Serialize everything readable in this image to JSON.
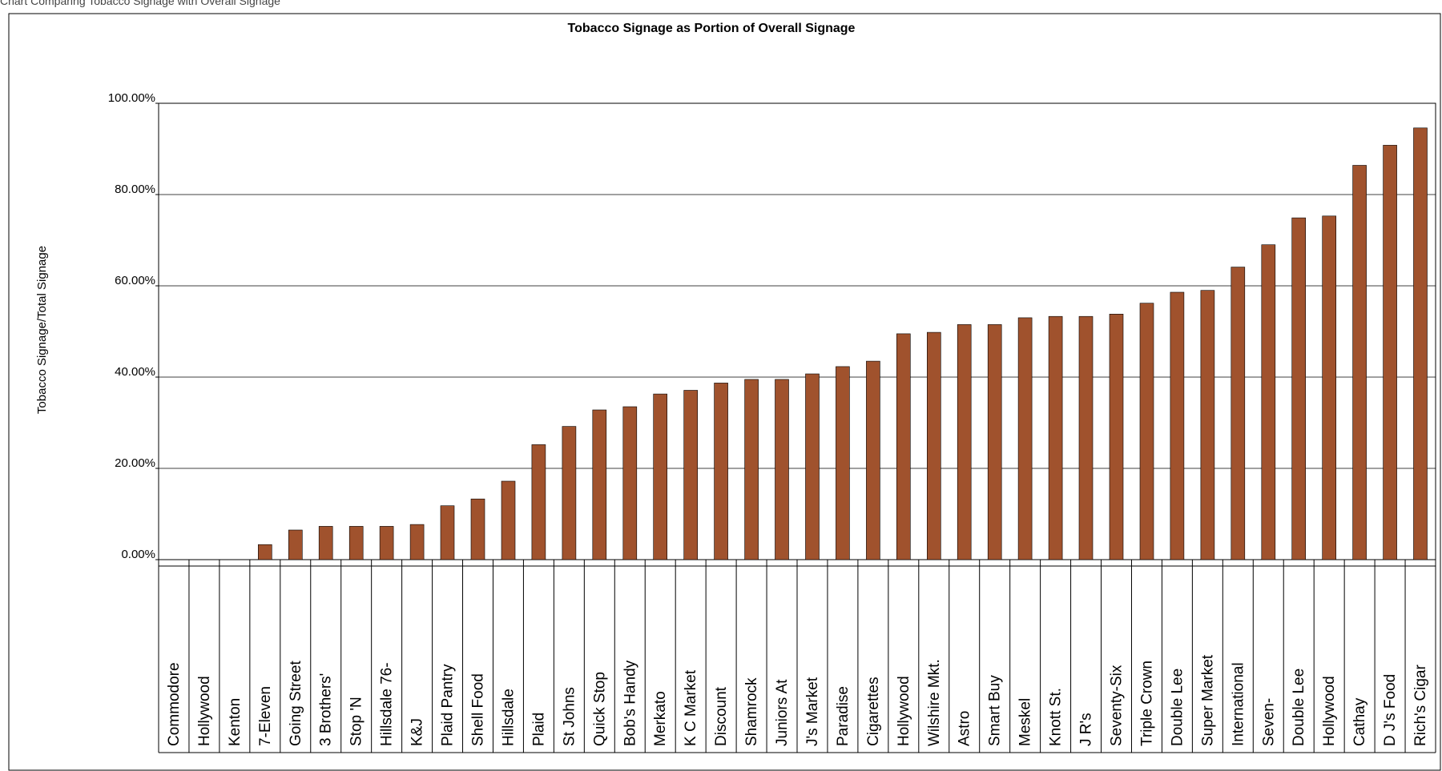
{
  "page_caption": "Chart Comparing Tobacco Signage with Overall Signage",
  "chart_data": {
    "type": "bar",
    "title": "Tobacco Signage as Portion of Overall Signage",
    "ylabel": "Tobacco Signage/Total Signage",
    "xlabel": "",
    "ylim": [
      0,
      100
    ],
    "y_ticks": [
      "0.00%",
      "20.00%",
      "40.00%",
      "60.00%",
      "80.00%",
      "100.00%"
    ],
    "y_tick_values": [
      0,
      20,
      40,
      60,
      80,
      100
    ],
    "grid": true,
    "bar_color": "#A0522D",
    "categories": [
      "Commodore",
      "Hollywood",
      "Kenton",
      "7-Eleven",
      "Going Street",
      "3 Brothers'",
      "Stop 'N",
      "Hillsdale 76-",
      "K&J",
      "Plaid Pantry",
      "Shell Food",
      "Hillsdale",
      "Plaid",
      "St Johns",
      "Quick Stop",
      "Bob's Handy",
      "Merkato",
      "K C Market",
      "Discount",
      "Shamrock",
      "Juniors At",
      "J's Market",
      "Paradise",
      "Cigarettes",
      "Hollywood",
      "Wilshire Mkt.",
      "Astro",
      "Smart Buy",
      "Meskel",
      "Knott St.",
      "J R's",
      "Seventy-Six",
      "Triple Crown",
      "Double Lee",
      "Super Market",
      "International",
      "Seven-",
      "Double Lee",
      "Hollywood",
      "Cathay",
      "D J's Food",
      "Rich's Cigar"
    ],
    "values": [
      0,
      0,
      0,
      3.3,
      6.5,
      7.3,
      7.3,
      7.3,
      7.7,
      11.8,
      13.3,
      17.2,
      25.2,
      29.2,
      32.8,
      33.5,
      36.3,
      37.1,
      38.7,
      39.5,
      39.5,
      40.7,
      42.3,
      43.5,
      49.5,
      49.8,
      51.5,
      51.5,
      53.0,
      53.3,
      53.3,
      53.8,
      56.2,
      58.6,
      59.0,
      64.1,
      69.0,
      74.9,
      75.3,
      86.4,
      90.8,
      94.6
    ]
  }
}
